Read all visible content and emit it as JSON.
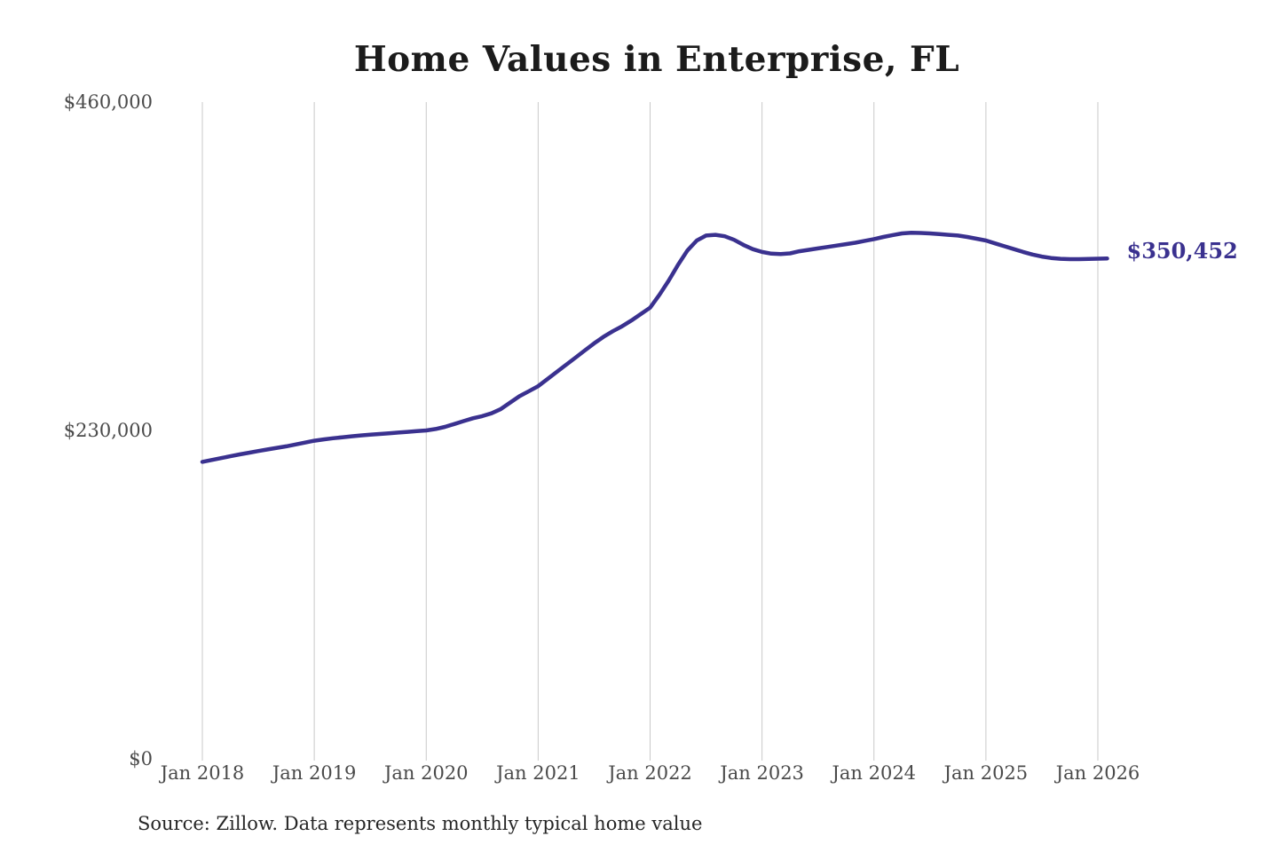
{
  "chart_data": {
    "type": "line",
    "title": "Home Values in Enterprise, FL",
    "source_note": "Source: Zillow. Data represents monthly typical home value",
    "latest_value_label": "$350,452",
    "latest_value": 350452,
    "x_start": "Jan 2018",
    "x_end": "Feb 2026",
    "frequency": "monthly",
    "x_tick_labels": [
      "Jan 2018",
      "Jan 2019",
      "Jan 2020",
      "Jan 2021",
      "Jan 2022",
      "Jan 2023",
      "Jan 2024",
      "Jan 2025",
      "Jan 2026"
    ],
    "yticks": [
      {
        "label": "$460,000",
        "value": 460000
      },
      {
        "label": "$230,000",
        "value": 230000
      },
      {
        "label": "$0",
        "value": 0
      }
    ],
    "ylim": [
      0,
      460000
    ],
    "grid": "vertical-only",
    "legend": "none",
    "line_color": "#3a318f",
    "grid_color": "#c9c9c9",
    "values": [
      208000,
      209300,
      210600,
      211900,
      213200,
      214400,
      215600,
      216700,
      217800,
      218900,
      220200,
      221500,
      222800,
      223700,
      224500,
      225200,
      225900,
      226500,
      227000,
      227500,
      228000,
      228500,
      229000,
      229500,
      230000,
      231000,
      232500,
      234500,
      236500,
      238500,
      240000,
      242000,
      245000,
      249500,
      254000,
      257500,
      261000,
      266000,
      271000,
      276000,
      281000,
      286000,
      291000,
      295500,
      299500,
      303000,
      307000,
      311500,
      316000,
      325000,
      335000,
      346000,
      356000,
      363000,
      366500,
      367000,
      366000,
      363500,
      360000,
      357000,
      355000,
      353800,
      353500,
      354000,
      355500,
      356500,
      357500,
      358500,
      359500,
      360500,
      361500,
      362800,
      364000,
      365500,
      366800,
      368000,
      368500,
      368300,
      368000,
      367500,
      367000,
      366500,
      365500,
      364300,
      363000,
      361000,
      359000,
      357000,
      355000,
      353200,
      351800,
      350800,
      350200,
      350000,
      350000,
      350100,
      350300,
      350452
    ]
  }
}
